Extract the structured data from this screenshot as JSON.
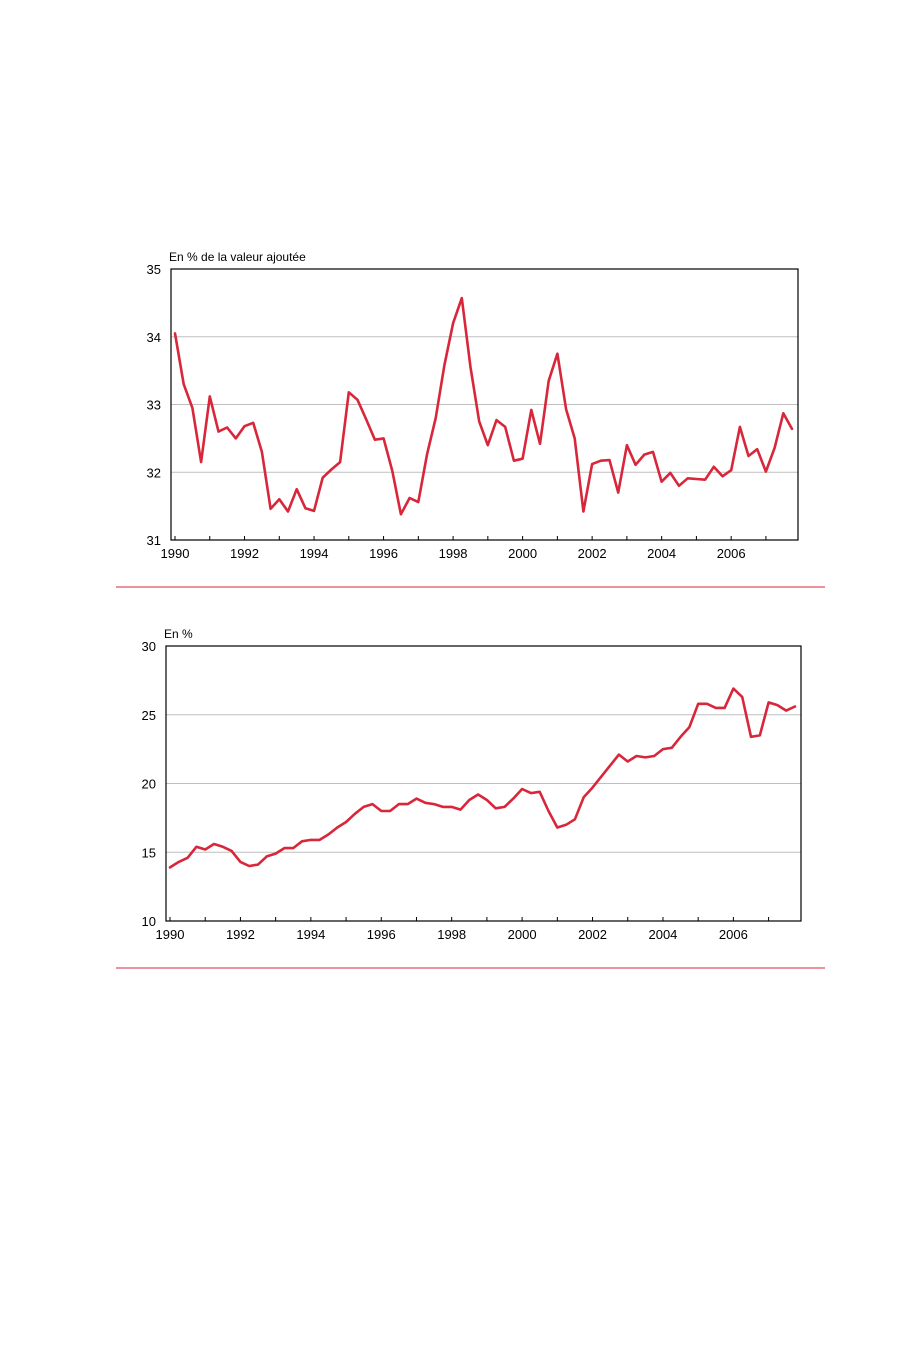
{
  "colors": {
    "series": "#d8263a",
    "separator": "#d8263a",
    "grid": "#bfbfbf",
    "axis": "#000000"
  },
  "chart_data": [
    {
      "type": "line",
      "ylabel": "En % de la valeur ajoutée",
      "ylim": [
        31,
        35
      ],
      "yticks": [
        "31",
        "32",
        "33",
        "34",
        "35"
      ],
      "xlim": [
        1990,
        2007.75
      ],
      "xticks": [
        "1990",
        "1992",
        "1994",
        "1996",
        "1998",
        "2000",
        "2002",
        "2004",
        "2006"
      ],
      "grid": "horizontal",
      "series": [
        {
          "x": [
            1990.0,
            1990.25,
            1990.5,
            1990.75,
            1991.0,
            1991.25,
            1991.5,
            1991.75,
            1992.0,
            1992.25,
            1992.5,
            1992.75,
            1993.0,
            1993.25,
            1993.5,
            1993.75,
            1994.0,
            1994.25,
            1994.5,
            1994.75,
            1995.0,
            1995.25,
            1995.5,
            1995.75,
            1996.0,
            1996.25,
            1996.5,
            1996.75,
            1997.0,
            1997.25,
            1997.5,
            1997.75,
            1998.0,
            1998.25,
            1998.5,
            1998.75,
            1999.0,
            1999.25,
            1999.5,
            1999.75,
            2000.0,
            2000.25,
            2000.5,
            2000.75,
            2001.0,
            2001.25,
            2001.5,
            2001.75,
            2002.0,
            2002.25,
            2002.5,
            2002.75,
            2003.0,
            2003.25,
            2003.5,
            2003.75,
            2004.0,
            2004.25,
            2004.5,
            2004.75,
            2005.0,
            2005.25,
            2005.5,
            2005.75,
            2006.0,
            2006.25,
            2006.5,
            2006.75,
            2007.0,
            2007.25,
            2007.5,
            2007.75
          ],
          "y": [
            34.05,
            33.3,
            32.95,
            32.15,
            33.12,
            32.6,
            32.66,
            32.5,
            32.68,
            32.73,
            32.3,
            31.46,
            31.6,
            31.42,
            31.75,
            31.47,
            31.43,
            31.92,
            32.04,
            32.15,
            33.18,
            33.07,
            32.78,
            32.48,
            32.5,
            32.02,
            31.38,
            31.62,
            31.56,
            32.26,
            32.8,
            33.58,
            34.2,
            34.57,
            33.55,
            32.75,
            32.4,
            32.77,
            32.67,
            32.17,
            32.2,
            32.92,
            32.42,
            33.35,
            33.75,
            32.93,
            32.5,
            31.42,
            32.12,
            32.17,
            32.18,
            31.7,
            32.4,
            32.11,
            32.26,
            32.3,
            31.86,
            31.99,
            31.8,
            31.91,
            31.9,
            31.89,
            32.08,
            31.94,
            32.03,
            32.67,
            32.24,
            32.34,
            32.01,
            32.36,
            32.87,
            32.64
          ]
        }
      ]
    },
    {
      "type": "line",
      "ylabel": "En %",
      "ylim": [
        10,
        30
      ],
      "yticks": [
        "10",
        "15",
        "20",
        "25",
        "30"
      ],
      "xlim": [
        1990,
        2007.75
      ],
      "xticks": [
        "1990",
        "1992",
        "1994",
        "1996",
        "1998",
        "2000",
        "2002",
        "2004",
        "2006"
      ],
      "grid": "horizontal",
      "series": [
        {
          "x": [
            1990.0,
            1990.25,
            1990.5,
            1990.75,
            1991.0,
            1991.25,
            1991.5,
            1991.75,
            1992.0,
            1992.25,
            1992.5,
            1992.75,
            1993.0,
            1993.25,
            1993.5,
            1993.75,
            1994.0,
            1994.25,
            1994.5,
            1994.75,
            1995.0,
            1995.25,
            1995.5,
            1995.75,
            1996.0,
            1996.25,
            1996.5,
            1996.75,
            1997.0,
            1997.25,
            1997.5,
            1997.75,
            1998.0,
            1998.25,
            1998.5,
            1998.75,
            1999.0,
            1999.25,
            1999.5,
            1999.75,
            2000.0,
            2000.25,
            2000.5,
            2000.75,
            2001.0,
            2001.25,
            2001.5,
            2001.75,
            2002.0,
            2002.25,
            2002.5,
            2002.75,
            2003.0,
            2003.25,
            2003.5,
            2003.75,
            2004.0,
            2004.25,
            2004.5,
            2004.75,
            2005.0,
            2005.25,
            2005.5,
            2005.75,
            2006.0,
            2006.25,
            2006.5,
            2006.75,
            2007.0,
            2007.25,
            2007.5,
            2007.75
          ],
          "y": [
            13.9,
            14.3,
            14.6,
            15.4,
            15.2,
            15.6,
            15.4,
            15.1,
            14.3,
            14.0,
            14.1,
            14.7,
            14.9,
            15.3,
            15.3,
            15.8,
            15.9,
            15.9,
            16.3,
            16.8,
            17.2,
            17.8,
            18.3,
            18.5,
            18.0,
            18.0,
            18.5,
            18.5,
            18.9,
            18.6,
            18.5,
            18.3,
            18.3,
            18.1,
            18.8,
            19.2,
            18.8,
            18.2,
            18.3,
            18.9,
            19.6,
            19.3,
            19.4,
            18.0,
            16.8,
            17.0,
            17.4,
            19.0,
            19.7,
            20.5,
            21.3,
            22.1,
            21.6,
            22.0,
            21.9,
            22.0,
            22.5,
            22.6,
            23.4,
            24.1,
            25.8,
            25.8,
            25.5,
            25.5,
            26.9,
            26.3,
            23.4,
            23.5,
            25.9,
            25.7,
            25.3,
            25.6
          ]
        }
      ]
    }
  ]
}
